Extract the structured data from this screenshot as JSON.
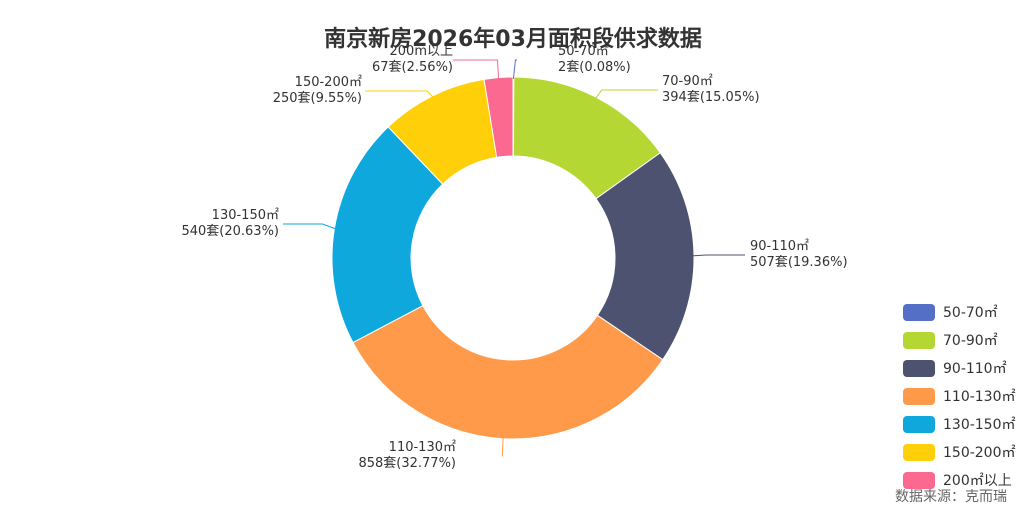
{
  "chart_data": {
    "type": "pie",
    "title": "南京新房2026年03月面积段供求数据",
    "categories": [
      "50-70㎡",
      "70-90㎡",
      "90-110㎡",
      "110-130㎡",
      "130-150㎡",
      "150-200㎡",
      "200㎡以上"
    ],
    "values": [
      2,
      394,
      507,
      858,
      540,
      250,
      67
    ],
    "units": "套",
    "percents": [
      "0.08%",
      "15.05%",
      "19.36%",
      "32.77%",
      "20.63%",
      "9.55%",
      "2.56%"
    ],
    "colors": [
      "#5470c6",
      "#b5d733",
      "#4e5271",
      "#ff9a4a",
      "#0ea8dd",
      "#ffd00a",
      "#fb6890"
    ],
    "slice_labels": [
      {
        "name": "50-70㎡",
        "value": "2套(0.08%)"
      },
      {
        "name": "70-90㎡",
        "value": "394套(15.05%)"
      },
      {
        "name": "90-110㎡",
        "value": "507套(19.36%)"
      },
      {
        "name": "110-130㎡",
        "value": "858套(32.77%)"
      },
      {
        "name": "130-150㎡",
        "value": "540套(20.63%)"
      },
      {
        "name": "150-200㎡",
        "value": "250套(9.55%)"
      },
      {
        "name": "200m以上",
        "value": "67套(2.56%)"
      }
    ],
    "legend": {
      "position": "bottom-right",
      "items": [
        "50-70㎡",
        "70-90㎡",
        "90-110㎡",
        "110-130㎡",
        "130-150㎡",
        "150-200㎡",
        "200㎡以上"
      ]
    }
  },
  "source": "数据来源：克而瑞"
}
